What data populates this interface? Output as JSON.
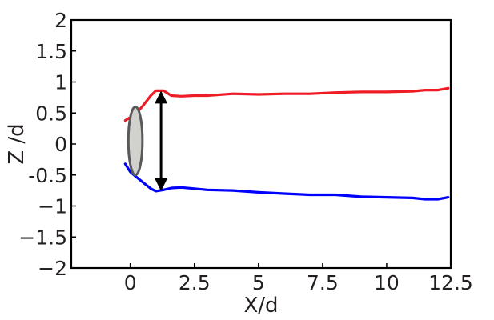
{
  "chart_data": {
    "type": "line",
    "title": "",
    "xlabel": "X/d",
    "ylabel": "Z /d",
    "xlim": [
      -2.3,
      12.5
    ],
    "ylim": [
      -2,
      2
    ],
    "grid": false,
    "legend": "none",
    "xticks": [
      {
        "value": 0,
        "label": "0"
      },
      {
        "value": 2.5,
        "label": "2.5"
      },
      {
        "value": 5,
        "label": "5"
      },
      {
        "value": 7.5,
        "label": "7.5"
      },
      {
        "value": 10,
        "label": "10"
      },
      {
        "value": 12.5,
        "label": "12.5"
      }
    ],
    "yticks": [
      {
        "value": 2,
        "label": "2"
      },
      {
        "value": 1.5,
        "label": "1.5"
      },
      {
        "value": 1,
        "label": "1"
      },
      {
        "value": 0.5,
        "label": "0.5"
      },
      {
        "value": 0,
        "label": "0"
      },
      {
        "value": -0.5,
        "label": "-0.5"
      },
      {
        "value": -1,
        "label": "−1"
      },
      {
        "value": -1.5,
        "label": "−1.5"
      },
      {
        "value": -2,
        "label": "−2"
      }
    ],
    "series": [
      {
        "color": "#ee1c24",
        "x": [
          -0.2,
          0.2,
          0.5,
          0.8,
          1.0,
          1.3,
          1.6,
          2.0,
          2.5,
          3.0,
          4.0,
          5.0,
          6.0,
          7.0,
          8.0,
          9.0,
          10.0,
          11.0,
          11.5,
          12.0,
          12.4
        ],
        "y": [
          0.38,
          0.48,
          0.62,
          0.78,
          0.86,
          0.86,
          0.78,
          0.77,
          0.78,
          0.78,
          0.81,
          0.8,
          0.81,
          0.81,
          0.83,
          0.84,
          0.84,
          0.85,
          0.87,
          0.87,
          0.9
        ]
      },
      {
        "color": "#0000ff",
        "x": [
          -0.2,
          0.0,
          0.2,
          0.5,
          0.8,
          1.0,
          1.3,
          1.6,
          2.0,
          2.5,
          3.0,
          4.0,
          5.0,
          6.0,
          7.0,
          8.0,
          9.0,
          10.0,
          11.0,
          11.5,
          12.0,
          12.4
        ],
        "y": [
          -0.32,
          -0.45,
          -0.52,
          -0.62,
          -0.72,
          -0.76,
          -0.74,
          -0.71,
          -0.7,
          -0.72,
          -0.74,
          -0.75,
          -0.78,
          -0.8,
          -0.82,
          -0.82,
          -0.85,
          -0.86,
          -0.87,
          -0.89,
          -0.89,
          -0.86
        ]
      }
    ],
    "annotations": [
      {
        "type": "ellipse",
        "cx": 0.2,
        "cy": 0.05,
        "rx": 0.55,
        "ry": 0.55,
        "fill": "#d1d1cd",
        "stroke": "#58595b"
      },
      {
        "type": "double-arrow",
        "x": 1.2,
        "y1": 0.86,
        "y2": -0.76,
        "color": "#000000"
      }
    ],
    "frame_color": "#000000",
    "text_color": "#231f20"
  }
}
